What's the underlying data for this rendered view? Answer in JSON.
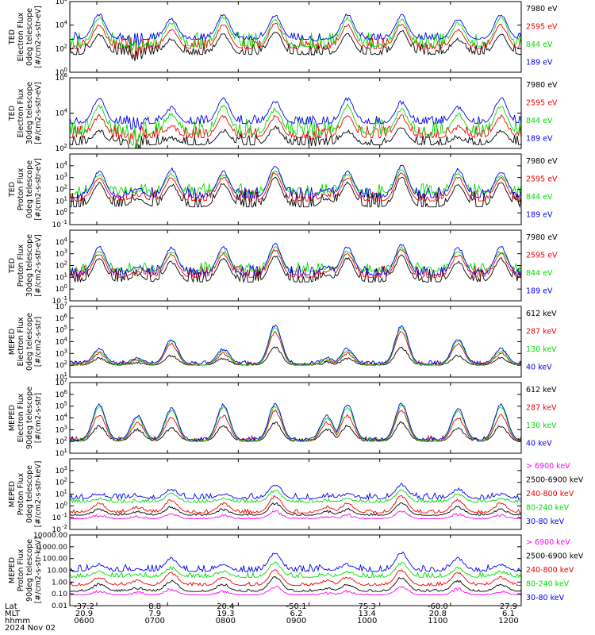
{
  "colors": {
    "black": "#000000",
    "red": "#ee0000",
    "green": "#00dd00",
    "blue": "#0000ee",
    "magenta": "#ff00ff"
  },
  "time_axis": {
    "row_labels": [
      "Lat",
      "MLT",
      "hhmm",
      "2024 Nov 02"
    ],
    "ticks": [
      {
        "lat": "-37.2",
        "mlt": "20.9",
        "hhmm": "0600"
      },
      {
        "lat": "8.8",
        "mlt": "7.9",
        "hhmm": "0700"
      },
      {
        "lat": "20.4",
        "mlt": "19.3",
        "hhmm": "0800"
      },
      {
        "lat": "-50.1",
        "mlt": "6.2",
        "hhmm": "0900"
      },
      {
        "lat": "75.3",
        "mlt": "13.4",
        "hhmm": "1000"
      },
      {
        "lat": "-60.0",
        "mlt": "20.8",
        "hhmm": "1100"
      },
      {
        "lat": "27.9",
        "mlt": "6.1",
        "hhmm": "1200"
      }
    ]
  },
  "chart_data": [
    {
      "type": "line",
      "ylog": true,
      "ylim": [
        1,
        1000000
      ],
      "ylabel": [
        "TED",
        "Electron Flux",
        "0deg telescope",
        "[#/cm2-s-str-eV]"
      ],
      "yticks": [
        {
          "v": 1,
          "label": "10",
          "exp": "0"
        },
        {
          "v": 100,
          "label": "10",
          "exp": "2"
        },
        {
          "v": 10000,
          "label": "10",
          "exp": "4"
        },
        {
          "v": 1000000,
          "label": "10",
          "exp": "6"
        }
      ],
      "series": [
        {
          "name": "7980 eV",
          "color": "black"
        },
        {
          "name": "2595 eV",
          "color": "red"
        },
        {
          "name": "844 eV",
          "color": "green"
        },
        {
          "name": "189 eV",
          "color": "blue"
        }
      ],
      "profile": {
        "base": [
          1.5,
          2.0,
          2.2,
          2.8
        ],
        "peaks": [
          [
            0.99,
            1.2,
            1.6,
            2.1
          ],
          [
            3.2,
            4.0,
            4.6,
            4.9
          ],
          [
            2.8,
            3.6,
            4.2,
            4.5
          ],
          [
            3.5,
            4.1,
            4.5,
            4.8
          ]
        ],
        "noise": [
          1.0,
          1.0,
          1.2,
          0.6
        ]
      }
    },
    {
      "type": "line",
      "ylog": true,
      "ylim": [
        100,
        1000000
      ],
      "ylabel": [
        "TED",
        "Electron Flux",
        "30deg telescope",
        "[#/cm2-s-str-eV]"
      ],
      "yticks": [
        {
          "v": 100,
          "label": "10",
          "exp": "2"
        },
        {
          "v": 10000,
          "label": "10",
          "exp": "4"
        },
        {
          "v": 1000000,
          "label": "10",
          "exp": "6"
        }
      ],
      "series": [
        {
          "name": "7980 eV",
          "color": "black"
        },
        {
          "name": "2595 eV",
          "color": "red"
        },
        {
          "name": "844 eV",
          "color": "green"
        },
        {
          "name": "189 eV",
          "color": "blue"
        }
      ],
      "profile": {
        "base": [
          2.2,
          2.6,
          2.8,
          3.4
        ],
        "peaks": [
          [
            1.0,
            1.5,
            2.0,
            2.6
          ],
          [
            3.0,
            3.8,
            4.4,
            4.8
          ],
          [
            2.6,
            3.2,
            3.9,
            4.3
          ],
          [
            3.2,
            3.8,
            4.2,
            4.6
          ]
        ],
        "noise": [
          0.6,
          0.7,
          0.9,
          0.5
        ]
      }
    },
    {
      "type": "line",
      "ylog": true,
      "ylim": [
        0.1,
        100000
      ],
      "ylabel": [
        "TED",
        "Proton Flux",
        "0deg telescope",
        "[#/cm2-s-str-eV]"
      ],
      "yticks": [
        {
          "v": 0.1,
          "label": "10",
          "exp": "-1"
        },
        {
          "v": 1,
          "label": "10",
          "exp": "0"
        },
        {
          "v": 10,
          "label": "10",
          "exp": "1"
        },
        {
          "v": 100,
          "label": "10",
          "exp": "2"
        },
        {
          "v": 1000,
          "label": "10",
          "exp": "3"
        },
        {
          "v": 10000,
          "label": "10",
          "exp": "4"
        }
      ],
      "series": [
        {
          "name": "7980 eV",
          "color": "black"
        },
        {
          "name": "2595 eV",
          "color": "red"
        },
        {
          "name": "844 eV",
          "color": "green"
        },
        {
          "name": "189 eV",
          "color": "blue"
        }
      ],
      "profile": {
        "base": [
          0.5,
          1.0,
          1.6,
          1.3
        ],
        "peaks": [
          [
            1.2,
            1.5,
            1.8,
            2.0
          ],
          [
            2.5,
            3.0,
            3.2,
            3.5
          ],
          [
            2.4,
            3.0,
            3.3,
            3.7
          ],
          [
            3.0,
            3.4,
            3.6,
            4.0
          ]
        ],
        "noise": [
          1.4,
          1.0,
          0.9,
          0.9
        ]
      }
    },
    {
      "type": "line",
      "ylog": true,
      "ylim": [
        0.1,
        100000
      ],
      "ylabel": [
        "TED",
        "Proton Flux",
        "30deg telescope",
        "[#/cm2-s-str-eV]"
      ],
      "yticks": [
        {
          "v": 0.1,
          "label": "10",
          "exp": "-1"
        },
        {
          "v": 1,
          "label": "10",
          "exp": "0"
        },
        {
          "v": 10,
          "label": "10",
          "exp": "1"
        },
        {
          "v": 100,
          "label": "10",
          "exp": "2"
        },
        {
          "v": 1000,
          "label": "10",
          "exp": "3"
        },
        {
          "v": 10000,
          "label": "10",
          "exp": "4"
        }
      ],
      "series": [
        {
          "name": "7980 eV",
          "color": "black"
        },
        {
          "name": "2595 eV",
          "color": "red"
        },
        {
          "name": "844 eV",
          "color": "green"
        },
        {
          "name": "189 eV",
          "color": "blue"
        }
      ],
      "profile": {
        "base": [
          0.6,
          1.0,
          1.5,
          1.2
        ],
        "peaks": [
          [
            1.2,
            1.5,
            1.7,
            1.9
          ],
          [
            2.6,
            3.0,
            3.2,
            3.6
          ],
          [
            2.3,
            2.9,
            3.2,
            3.5
          ],
          [
            2.8,
            3.3,
            3.5,
            3.8
          ]
        ],
        "noise": [
          1.2,
          1.0,
          0.8,
          0.8
        ]
      }
    },
    {
      "type": "line",
      "ylog": true,
      "ylim": [
        10,
        10000000
      ],
      "ylabel": [
        "MEPED",
        "Electron Flux",
        "0deg telescope",
        "[#/cm2-s-str]"
      ],
      "yticks": [
        {
          "v": 10,
          "label": "10",
          "exp": "1"
        },
        {
          "v": 100,
          "label": "10",
          "exp": "2"
        },
        {
          "v": 1000,
          "label": "10",
          "exp": "3"
        },
        {
          "v": 10000,
          "label": "10",
          "exp": "4"
        },
        {
          "v": 100000,
          "label": "10",
          "exp": "5"
        },
        {
          "v": 1000000,
          "label": "10",
          "exp": "6"
        },
        {
          "v": 10000000,
          "label": "10",
          "exp": "7"
        }
      ],
      "series": [
        {
          "name": "612 keV",
          "color": "black"
        },
        {
          "name": "287 keV",
          "color": "red"
        },
        {
          "name": "130 keV",
          "color": "green"
        },
        {
          "name": "40 keV",
          "color": "blue"
        }
      ],
      "profile": {
        "base": [
          2.0,
          2.0,
          2.0,
          2.1
        ],
        "peaks": [
          [
            2.2,
            2.4,
            2.5,
            2.6
          ],
          [
            2.6,
            3.0,
            3.2,
            3.4
          ],
          [
            2.8,
            3.8,
            4.1,
            4.2
          ],
          [
            3.5,
            4.8,
            5.2,
            5.4
          ]
        ],
        "noise": [
          0.2,
          0.4,
          0.2,
          0.3
        ]
      }
    },
    {
      "type": "line",
      "ylog": true,
      "ylim": [
        10,
        10000000
      ],
      "ylabel": [
        "MEPED",
        "Electron Flux",
        "90deg telescope",
        "[#/cm2-s-str]"
      ],
      "yticks": [
        {
          "v": 10,
          "label": "10",
          "exp": "1"
        },
        {
          "v": 100,
          "label": "10",
          "exp": "2"
        },
        {
          "v": 1000,
          "label": "10",
          "exp": "3"
        },
        {
          "v": 10000,
          "label": "10",
          "exp": "4"
        },
        {
          "v": 100000,
          "label": "10",
          "exp": "5"
        },
        {
          "v": 1000000,
          "label": "10",
          "exp": "6"
        },
        {
          "v": 10000000,
          "label": "10",
          "exp": "7"
        }
      ],
      "series": [
        {
          "name": "612 keV",
          "color": "black"
        },
        {
          "name": "287 keV",
          "color": "red"
        },
        {
          "name": "130 keV",
          "color": "green"
        },
        {
          "name": "40 keV",
          "color": "blue"
        }
      ],
      "profile": {
        "base": [
          2.0,
          2.0,
          2.0,
          2.1
        ],
        "peaks": [
          [
            3.0,
            3.6,
            4.0,
            4.2
          ],
          [
            3.3,
            4.2,
            4.9,
            5.1
          ],
          [
            3.1,
            4.0,
            4.6,
            4.8
          ],
          [
            3.6,
            4.6,
            5.0,
            5.2
          ]
        ],
        "noise": [
          0.3,
          0.5,
          0.3,
          0.3
        ]
      }
    },
    {
      "type": "line",
      "ylog": true,
      "ylim": [
        0.01,
        10000
      ],
      "ylabel": [
        "MEPED",
        "Proton Flux",
        "0deg telescope",
        "[#/cm2-s-str-keV]"
      ],
      "yticks": [
        {
          "v": 0.01,
          "label": "10",
          "exp": "-2"
        },
        {
          "v": 0.1,
          "label": "10",
          "exp": "-1"
        },
        {
          "v": 1,
          "label": "10",
          "exp": "0"
        },
        {
          "v": 10,
          "label": "10",
          "exp": "1"
        },
        {
          "v": 100,
          "label": "10",
          "exp": "2"
        },
        {
          "v": 1000,
          "label": "10",
          "exp": "3"
        }
      ],
      "series": [
        {
          "name": "> 6900 keV",
          "color": "magenta"
        },
        {
          "name": "2500-6900 keV",
          "color": "black"
        },
        {
          "name": "240-800 keV",
          "color": "red"
        },
        {
          "name": "80-240 keV",
          "color": "green"
        },
        {
          "name": "30-80 keV",
          "color": "blue"
        }
      ],
      "profile": {
        "base": [
          -1.1,
          -0.8,
          -0.6,
          0.3,
          0.6
        ],
        "peaks": [
          [
            -0.9,
            -0.5,
            -0.1,
            0.4,
            0.8
          ],
          [
            -0.8,
            -0.3,
            0.2,
            0.6,
            1.0
          ],
          [
            -0.7,
            -0.1,
            0.5,
            1.0,
            1.4
          ],
          [
            -0.5,
            0.2,
            0.8,
            1.3,
            1.8
          ]
        ],
        "noise": [
          0.1,
          0.2,
          0.3,
          0.3,
          0.5
        ]
      }
    },
    {
      "type": "line",
      "ylog": true,
      "ylim": [
        0.01,
        10000
      ],
      "ylabel": [
        "MEPED",
        "Proton Flux",
        "90deg telescope",
        "[#/cm2-s-str-keV]"
      ],
      "yticks": [
        {
          "v": 0.01,
          "label": "0.01"
        },
        {
          "v": 0.1,
          "label": "0.10"
        },
        {
          "v": 1,
          "label": "1.00"
        },
        {
          "v": 10,
          "label": "10.00"
        },
        {
          "v": 100,
          "label": "100.00"
        },
        {
          "v": 1000,
          "label": "1000.00"
        },
        {
          "v": 10000,
          "label": "10000.00"
        }
      ],
      "series": [
        {
          "name": "> 6900 keV",
          "color": "magenta"
        },
        {
          "name": "2500-6900 keV",
          "color": "black"
        },
        {
          "name": "240-800 keV",
          "color": "red"
        },
        {
          "name": "80-240 keV",
          "color": "green"
        },
        {
          "name": "30-80 keV",
          "color": "blue"
        }
      ],
      "profile": {
        "base": [
          -1.1,
          -0.8,
          -0.3,
          0.4,
          0.9
        ],
        "peaks": [
          [
            -0.9,
            -0.5,
            0.1,
            0.6,
            1.1
          ],
          [
            -0.8,
            -0.2,
            0.4,
            0.9,
            1.5
          ],
          [
            -0.6,
            0.1,
            0.8,
            1.2,
            2.0
          ],
          [
            -0.4,
            0.4,
            1.0,
            1.6,
            2.5
          ]
        ],
        "noise": [
          0.1,
          0.2,
          0.3,
          0.4,
          0.6
        ]
      }
    }
  ]
}
